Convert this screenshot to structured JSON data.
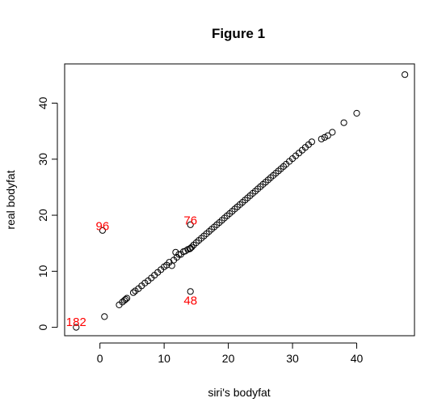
{
  "chart_data": {
    "type": "scatter",
    "title": "Figure 1",
    "xlabel": "siri's bodyfat",
    "ylabel": "real bodyfat",
    "xlim": [
      -5.5,
      49
    ],
    "ylim": [
      -1.5,
      47
    ],
    "x_ticks": [
      0,
      10,
      20,
      30,
      40
    ],
    "y_ticks": [
      0,
      10,
      20,
      30,
      40
    ],
    "grid": false,
    "legend": "none",
    "point_color": "#000000",
    "annotation_color": "#ff0000",
    "points": {
      "x": [
        -3.7,
        0.4,
        0.7,
        3.0,
        3.5,
        3.8,
        4.0,
        4.2,
        5.2,
        5.5,
        6.0,
        6.5,
        7.0,
        7.5,
        8.0,
        8.5,
        9.0,
        9.5,
        10.0,
        10.4,
        10.8,
        11.2,
        11.5,
        11.8,
        12.0,
        12.3,
        12.6,
        13.0,
        13.3,
        13.7,
        14.0,
        14.1,
        14.3,
        14.6,
        15.0,
        15.4,
        15.8,
        16.2,
        16.6,
        17.0,
        17.4,
        17.8,
        18.2,
        18.6,
        19.0,
        19.4,
        19.8,
        20.2,
        20.6,
        21.0,
        21.4,
        21.8,
        22.2,
        22.6,
        23.0,
        23.4,
        23.8,
        24.2,
        24.6,
        25.0,
        25.4,
        25.8,
        26.2,
        26.6,
        27.0,
        27.4,
        27.8,
        28.2,
        28.6,
        29.0,
        29.5,
        30.0,
        30.5,
        31.0,
        31.5,
        32.0,
        32.5,
        33.0,
        34.5,
        35.0,
        35.5,
        36.2,
        38.0,
        40.0,
        47.5,
        14.1,
        14.1
      ],
      "y": [
        0.0,
        17.3,
        1.9,
        4.0,
        4.5,
        4.8,
        5.0,
        5.2,
        6.2,
        6.5,
        6.9,
        7.4,
        7.9,
        8.3,
        8.8,
        9.3,
        9.8,
        10.3,
        10.8,
        11.1,
        11.6,
        11.0,
        12.0,
        13.4,
        12.5,
        13.0,
        13.0,
        13.5,
        13.6,
        13.9,
        14.0,
        14.1,
        14.3,
        14.7,
        15.1,
        15.5,
        15.9,
        16.3,
        16.7,
        17.1,
        17.5,
        17.9,
        18.3,
        18.7,
        19.1,
        19.5,
        19.9,
        20.3,
        20.7,
        21.1,
        21.5,
        21.9,
        22.3,
        22.7,
        23.1,
        23.5,
        23.9,
        24.3,
        24.7,
        25.1,
        25.5,
        25.9,
        26.3,
        26.7,
        27.1,
        27.5,
        27.9,
        28.3,
        28.7,
        29.1,
        29.6,
        30.1,
        30.6,
        31.1,
        31.6,
        32.1,
        32.6,
        33.1,
        33.6,
        33.9,
        34.2,
        34.8,
        36.5,
        38.2,
        45.1,
        18.3,
        6.4
      ]
    },
    "annotations": [
      {
        "label": "182",
        "x": -3.7,
        "y": 0.9
      },
      {
        "label": "96",
        "x": 0.4,
        "y": 18.0
      },
      {
        "label": "76",
        "x": 14.1,
        "y": 19.0
      },
      {
        "label": "48",
        "x": 14.1,
        "y": 4.7
      }
    ]
  }
}
